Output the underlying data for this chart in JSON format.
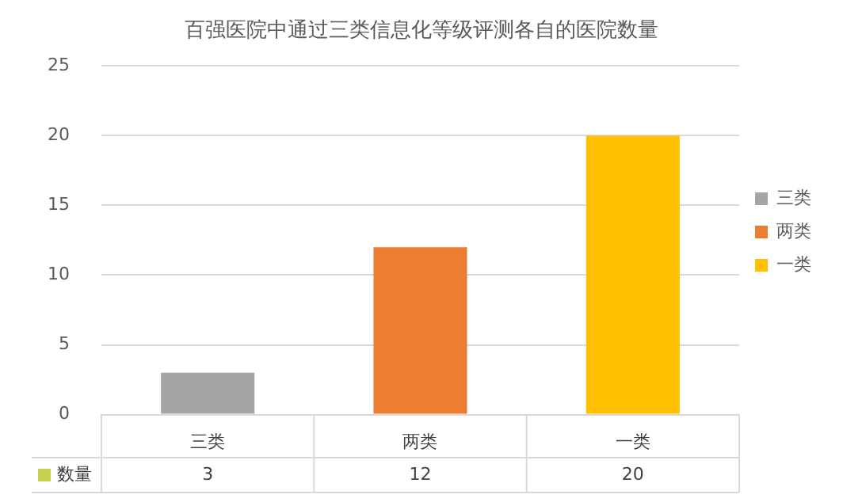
{
  "chart_data": {
    "type": "bar",
    "title": "百强医院中通过三类信息化等级评测各自的医院数量",
    "categories": [
      "三类",
      "两类",
      "一类"
    ],
    "series": [
      {
        "name": "三类",
        "color": "#a5a5a5",
        "values": [
          3,
          null,
          null
        ]
      },
      {
        "name": "两类",
        "color": "#ed7d31",
        "values": [
          null,
          12,
          null
        ]
      },
      {
        "name": "一类",
        "color": "#ffc000",
        "values": [
          null,
          null,
          20
        ]
      }
    ],
    "annotations": [
      "数量"
    ],
    "ylim": [
      0,
      25
    ],
    "yticks": [
      0,
      5,
      10,
      15,
      20,
      25
    ],
    "grid": "y",
    "legend": "right",
    "data_labels": true
  }
}
